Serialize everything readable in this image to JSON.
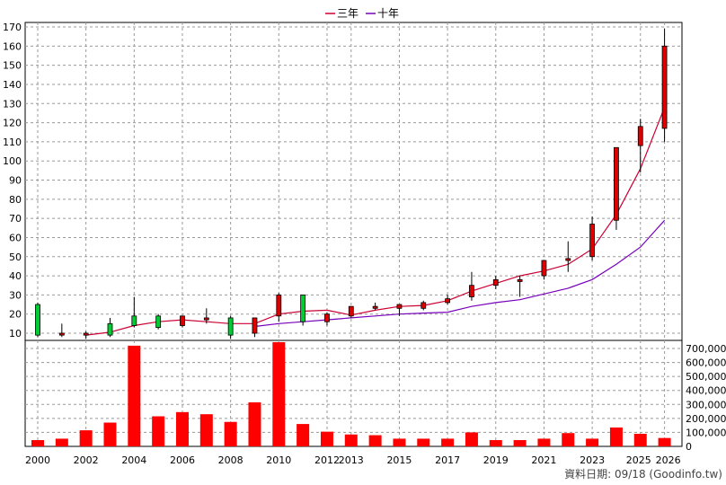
{
  "legend": [
    {
      "label": "三年",
      "color": "#cc0033"
    },
    {
      "label": "十年",
      "color": "#7700bb"
    }
  ],
  "footer": {
    "source": "資料日期: 09/18 (Goodinfo.tw)"
  },
  "chart_data": [
    {
      "type": "candlestick",
      "ylim": [
        5,
        172
      ],
      "yticks": [
        10,
        20,
        30,
        40,
        50,
        60,
        70,
        80,
        90,
        100,
        110,
        120,
        130,
        140,
        150,
        160,
        170
      ],
      "x_tick_labels": [
        "2000",
        "2002",
        "2004",
        "2006",
        "2008",
        "2010",
        "2012",
        "2013",
        "2015",
        "2017",
        "2019",
        "2021",
        "2023",
        "2025",
        "2026"
      ],
      "grid": true,
      "candles": [
        {
          "year": "2000",
          "open": 9,
          "high": 26,
          "low": 8,
          "close": 25
        },
        {
          "year": "2001",
          "open": 10,
          "high": 15,
          "low": 8,
          "close": 9
        },
        {
          "year": "2002",
          "open": 10,
          "high": 11,
          "low": 7,
          "close": 9
        },
        {
          "year": "2003",
          "open": 9,
          "high": 18,
          "low": 8,
          "close": 15
        },
        {
          "year": "2004",
          "open": 14,
          "high": 29,
          "low": 13,
          "close": 19
        },
        {
          "year": "2005",
          "open": 13,
          "high": 20,
          "low": 12,
          "close": 19
        },
        {
          "year": "2006",
          "open": 19,
          "high": 19,
          "low": 13,
          "close": 14
        },
        {
          "year": "2007",
          "open": 18,
          "high": 23,
          "low": 15,
          "close": 17
        },
        {
          "year": "2008",
          "open": 9,
          "high": 19,
          "low": 7,
          "close": 18
        },
        {
          "year": "2009",
          "open": 18,
          "high": 18,
          "low": 8,
          "close": 10
        },
        {
          "year": "2010",
          "open": 30,
          "high": 31,
          "low": 16,
          "close": 19
        },
        {
          "year": "2011",
          "open": 16,
          "high": 30,
          "low": 14,
          "close": 30
        },
        {
          "year": "2012",
          "open": 20,
          "high": 21,
          "low": 14,
          "close": 16
        },
        {
          "year": "2013",
          "open": 24,
          "high": 24,
          "low": 18,
          "close": 19
        },
        {
          "year": "2014",
          "open": 24,
          "high": 26,
          "low": 22,
          "close": 23
        },
        {
          "year": "2015",
          "open": 25,
          "high": 25,
          "low": 19,
          "close": 23
        },
        {
          "year": "2016",
          "open": 26,
          "high": 27,
          "low": 22,
          "close": 23
        },
        {
          "year": "2017",
          "open": 28,
          "high": 30,
          "low": 25,
          "close": 26
        },
        {
          "year": "2018",
          "open": 35,
          "high": 42,
          "low": 27,
          "close": 29
        },
        {
          "year": "2019",
          "open": 38,
          "high": 40,
          "low": 33,
          "close": 35
        },
        {
          "year": "2020",
          "open": 38,
          "high": 40,
          "low": 29,
          "close": 37
        },
        {
          "year": "2021",
          "open": 48,
          "high": 48,
          "low": 38,
          "close": 40
        },
        {
          "year": "2022",
          "open": 49,
          "high": 58,
          "low": 42,
          "close": 48
        },
        {
          "year": "2023",
          "open": 67,
          "high": 71,
          "low": 48,
          "close": 50
        },
        {
          "year": "2024",
          "open": 107,
          "high": 107,
          "low": 64,
          "close": 69
        },
        {
          "year": "2025",
          "open": 118,
          "high": 122,
          "low": 94,
          "close": 108
        },
        {
          "year": "2026",
          "open": 160,
          "high": 169,
          "low": 110,
          "close": 117
        }
      ],
      "series": [
        {
          "name": "三年",
          "color": "#cc0033",
          "values": [
            null,
            null,
            9,
            10.5,
            14,
            16,
            17,
            16,
            15,
            15,
            20,
            21.5,
            22,
            19.5,
            22,
            24,
            24.5,
            27,
            32,
            36,
            40,
            42.5,
            46,
            54,
            72,
            96,
            128
          ]
        },
        {
          "name": "十年",
          "color": "#7700bb",
          "values": [
            null,
            null,
            null,
            null,
            null,
            null,
            null,
            null,
            null,
            13.5,
            15,
            16,
            17,
            18,
            19,
            20,
            20.5,
            21,
            24,
            26,
            27.5,
            30.5,
            33.5,
            38,
            46,
            55,
            69
          ]
        }
      ]
    },
    {
      "type": "bar",
      "ylim": [
        0,
        760000
      ],
      "yticks": [
        0,
        100000,
        200000,
        300000,
        400000,
        500000,
        600000,
        700000
      ],
      "ytick_labels": [
        "0",
        "100,000",
        "200,000",
        "300,000",
        "400,000",
        "500,000",
        "600,000",
        "700,000"
      ],
      "categories": [
        "2000",
        "2001",
        "2002",
        "2003",
        "2004",
        "2005",
        "2006",
        "2007",
        "2008",
        "2009",
        "2010",
        "2011",
        "2012",
        "2013",
        "2014",
        "2015",
        "2016",
        "2017",
        "2018",
        "2019",
        "2020",
        "2021",
        "2022",
        "2023",
        "2024",
        "2025",
        "2026"
      ],
      "values": [
        45000,
        55000,
        115000,
        170000,
        720000,
        215000,
        245000,
        230000,
        175000,
        315000,
        745000,
        160000,
        105000,
        85000,
        80000,
        55000,
        55000,
        55000,
        100000,
        45000,
        45000,
        55000,
        95000,
        55000,
        135000,
        90000,
        60000
      ]
    }
  ]
}
